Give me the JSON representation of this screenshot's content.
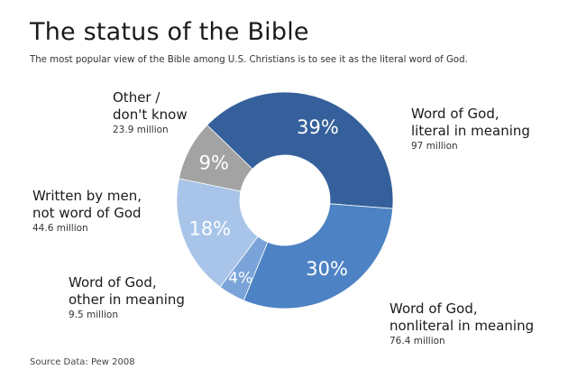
{
  "chart_data": {
    "type": "pie",
    "donut": true,
    "title": "The status of the Bible",
    "subtitle": "The most popular view of the Bible among U.S. Christians is to see it as the literal word of God.",
    "source": "Source Data: Pew 2008",
    "slices": [
      {
        "label": "Word of God,\nliteral in meaning",
        "amount": "97 million",
        "percent_label": "39%",
        "value": 39,
        "color": "#35609b"
      },
      {
        "label": "Word of God,\nnonliteral in meaning",
        "amount": "76.4 million",
        "percent_label": "30%",
        "value": 30,
        "color": "#4d83c4"
      },
      {
        "label": "Word of God,\nother in meaning",
        "amount": "9.5 million",
        "percent_label": "4%",
        "value": 4,
        "color": "#7aa4d9"
      },
      {
        "label": "Written by men,\nnot word of God",
        "amount": "44.6 million",
        "percent_label": "18%",
        "value": 18,
        "color": "#a8c4e8"
      },
      {
        "label": "Other /\ndon't know",
        "amount": "23.9 million",
        "percent_label": "9%",
        "value": 9,
        "color": "#a3a3a3"
      }
    ]
  }
}
